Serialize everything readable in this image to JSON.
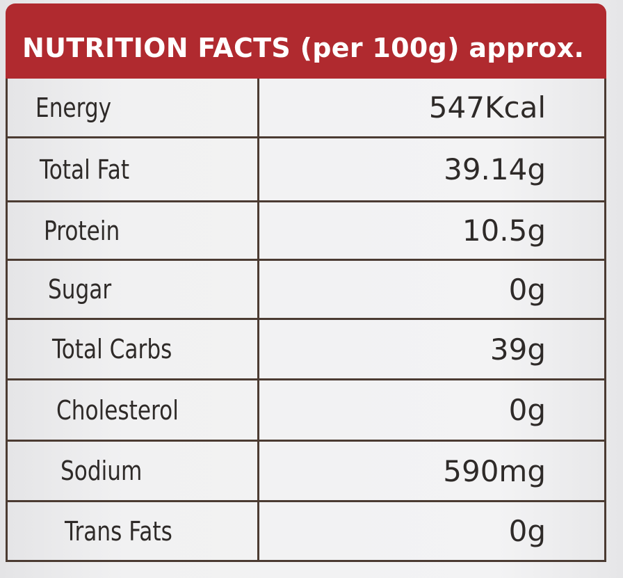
{
  "header": {
    "title": "NUTRITION FACTS (per 100g) approx."
  },
  "table": {
    "rows": [
      [
        "Energy",
        "547Kcal"
      ],
      [
        "Total Fat",
        "39.14g"
      ],
      [
        "Protein",
        "10.5g"
      ],
      [
        "Sugar",
        "0g"
      ],
      [
        "Total Carbs",
        "39g"
      ],
      [
        "Cholesterol",
        "0g"
      ],
      [
        "Sodium",
        "590mg"
      ],
      [
        "Trans Fats",
        "0g"
      ]
    ]
  }
}
